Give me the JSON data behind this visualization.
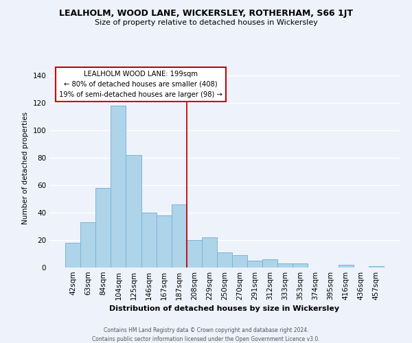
{
  "title": "LEALHOLM, WOOD LANE, WICKERSLEY, ROTHERHAM, S66 1JT",
  "subtitle": "Size of property relative to detached houses in Wickersley",
  "xlabel": "Distribution of detached houses by size in Wickersley",
  "ylabel": "Number of detached properties",
  "bar_color": "#aed4ea",
  "bar_edge_color": "#7ab4d8",
  "background_color": "#eef2fb",
  "grid_color": "#ffffff",
  "categories": [
    "42sqm",
    "63sqm",
    "84sqm",
    "104sqm",
    "125sqm",
    "146sqm",
    "167sqm",
    "187sqm",
    "208sqm",
    "229sqm",
    "250sqm",
    "270sqm",
    "291sqm",
    "312sqm",
    "333sqm",
    "353sqm",
    "374sqm",
    "395sqm",
    "416sqm",
    "436sqm",
    "457sqm"
  ],
  "values": [
    18,
    33,
    58,
    118,
    82,
    40,
    38,
    46,
    20,
    22,
    11,
    9,
    5,
    6,
    3,
    3,
    0,
    0,
    2,
    0,
    1
  ],
  "vline_x": 7.5,
  "vline_color": "#cc0000",
  "annotation_title": "LEALHOLM WOOD LANE: 199sqm",
  "annotation_line1": "← 80% of detached houses are smaller (408)",
  "annotation_line2": "19% of semi-detached houses are larger (98) →",
  "annotation_box_edge": "#cc0000",
  "annotation_box_bg": "#ffffff",
  "ylim": [
    0,
    145
  ],
  "footer1": "Contains HM Land Registry data © Crown copyright and database right 2024.",
  "footer2": "Contains public sector information licensed under the Open Government Licence v3.0."
}
